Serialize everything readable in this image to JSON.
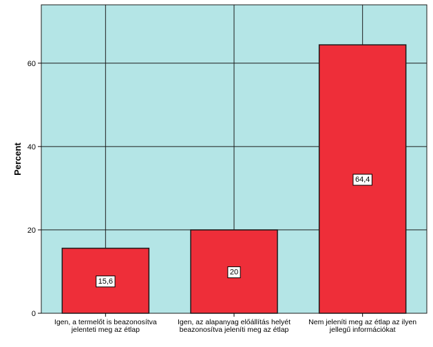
{
  "chart_data": {
    "type": "bar",
    "categories": [
      [
        "Igen, a termelőt is beazonosítva",
        "jelenteti meg az étlap"
      ],
      [
        "Igen, az alapanyag előállítás helyét",
        "beazonosítva jeleníti meg az étlap"
      ],
      [
        "Nem jeleníti meg az étlap az ilyen",
        "jellegű információkat"
      ]
    ],
    "values": [
      15.6,
      20,
      64.4
    ],
    "data_labels": [
      "15,6",
      "20",
      "64,4"
    ],
    "ylabel": "Percent",
    "xlabel": "",
    "ylim": [
      0,
      74
    ],
    "yticks": [
      0,
      20,
      40,
      60
    ],
    "grid": true,
    "colors": {
      "plot_background": "#b4e5e6",
      "bar": "#ee2e39",
      "bar_edge": "#1a1a1a",
      "grid": "#1a1a1a"
    }
  }
}
